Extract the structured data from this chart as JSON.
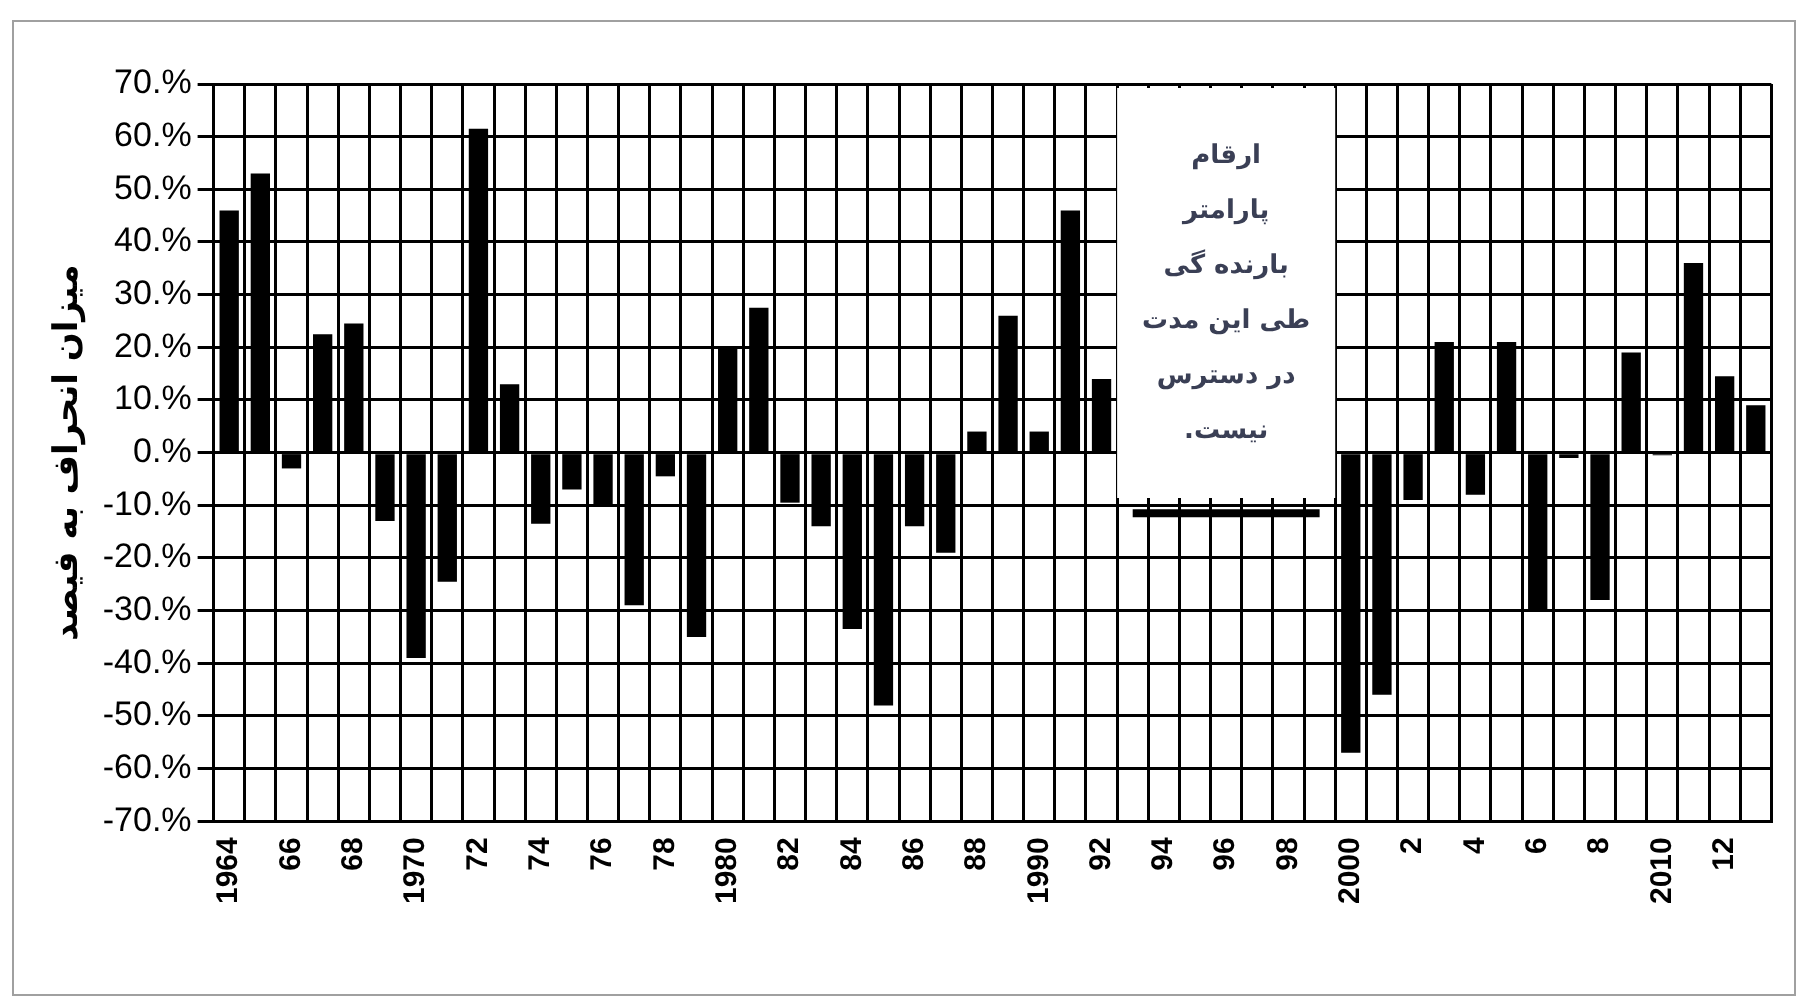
{
  "chart_data": {
    "type": "bar",
    "ylabel": "میزان انحراف به فیصد",
    "categories": [
      "1964",
      null,
      "66",
      null,
      "68",
      null,
      "1970",
      null,
      "72",
      null,
      "74",
      null,
      "76",
      null,
      "78",
      null,
      "1980",
      null,
      "82",
      null,
      "84",
      null,
      "86",
      null,
      "88",
      null,
      "1990",
      null,
      "92",
      null,
      "94",
      null,
      "96",
      null,
      "98",
      null,
      "2000",
      null,
      "2",
      null,
      "4",
      null,
      "6",
      null,
      "8",
      null,
      "2010",
      null,
      "12",
      null
    ],
    "series": [
      {
        "color": "#000000",
        "values": [
          46,
          53,
          -3,
          22.5,
          24.5,
          -13,
          -39,
          -24.5,
          61.5,
          13,
          -13.5,
          -7,
          -10,
          -29,
          -4.5,
          -35,
          20,
          27.5,
          -9.5,
          -14,
          -33.5,
          -48,
          -14,
          -19,
          4,
          26,
          4,
          46,
          14,
          null,
          null,
          null,
          null,
          null,
          null,
          null,
          -57,
          -46,
          -9,
          21,
          -8,
          21,
          -30,
          -1,
          -28,
          19,
          -0.5,
          36,
          14.5,
          9
        ]
      },
      {
        "type": "line",
        "color": "#000000",
        "values": [
          null,
          null,
          null,
          null,
          null,
          null,
          null,
          null,
          null,
          null,
          null,
          null,
          null,
          null,
          null,
          null,
          null,
          null,
          null,
          null,
          null,
          null,
          null,
          null,
          null,
          null,
          null,
          null,
          null,
          -11.5,
          -11.5,
          -11.5,
          -11.5,
          -11.5,
          -11.5,
          -11.5,
          null,
          null,
          null,
          null,
          null,
          null,
          null,
          null,
          null,
          null,
          null,
          null,
          null,
          null
        ],
        "marker": "none"
      }
    ],
    "ylim": [
      -70,
      70
    ],
    "yticks": [
      {
        "value": 70,
        "label": "70.%"
      },
      {
        "value": 60,
        "label": "60.%"
      },
      {
        "value": 50,
        "label": "50.%"
      },
      {
        "value": 40,
        "label": "40.%"
      },
      {
        "value": 30,
        "label": "30.%"
      },
      {
        "value": 20,
        "label": "20.%"
      },
      {
        "value": 10,
        "label": "10.%"
      },
      {
        "value": 0,
        "label": "0.%"
      },
      {
        "value": -10,
        "label": "-10.%"
      },
      {
        "value": -20,
        "label": "-20.%"
      },
      {
        "value": -30,
        "label": "-30.%"
      },
      {
        "value": -40,
        "label": "-40.%"
      },
      {
        "value": -50,
        "label": "-50.%"
      },
      {
        "value": -60,
        "label": "-60.%"
      },
      {
        "value": -70,
        "label": "-70.%"
      }
    ],
    "grid": true,
    "annotations": [
      "ارقام\nپارامتر\nبارنده گی\nطی این مدت\nدر دسترس\nنیست."
    ]
  }
}
